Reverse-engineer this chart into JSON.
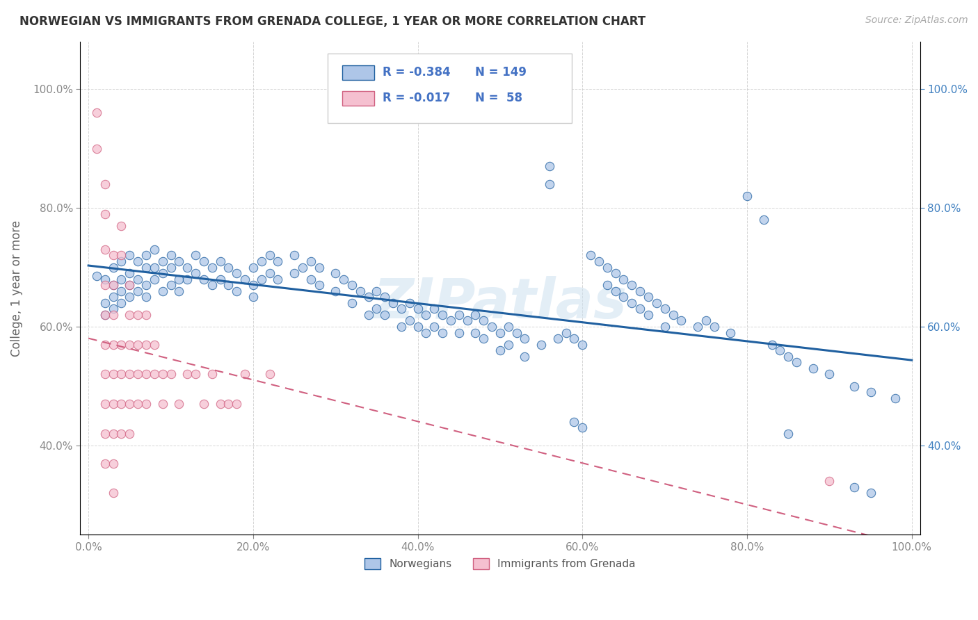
{
  "title": "NORWEGIAN VS IMMIGRANTS FROM GRENADA COLLEGE, 1 YEAR OR MORE CORRELATION CHART",
  "source": "Source: ZipAtlas.com",
  "ylabel": "College, 1 year or more",
  "x_tick_labels": [
    "0.0%",
    "20.0%",
    "40.0%",
    "60.0%",
    "80.0%",
    "100.0%"
  ],
  "x_tick_vals": [
    0.0,
    0.2,
    0.4,
    0.6,
    0.8,
    1.0
  ],
  "y_tick_labels_left": [
    "40.0%",
    "60.0%",
    "80.0%",
    "100.0%"
  ],
  "y_tick_labels_right": [
    "40.0%",
    "60.0%",
    "80.0%",
    "100.0%"
  ],
  "y_tick_vals": [
    0.4,
    0.6,
    0.8,
    1.0
  ],
  "xlim": [
    -0.01,
    1.01
  ],
  "ylim": [
    0.25,
    1.08
  ],
  "legend_r1_val": "-0.384",
  "legend_n1_val": "149",
  "legend_r2_val": "-0.017",
  "legend_n2_val": "58",
  "legend_label1": "Norwegians",
  "legend_label2": "Immigrants from Grenada",
  "blue_color": "#aec6e8",
  "blue_line_color": "#2060a0",
  "pink_color": "#f5c0d0",
  "pink_line_color": "#d06080",
  "watermark": "ZIPatlas",
  "background_color": "#ffffff",
  "grid_color": "#cccccc",
  "blue_scatter": [
    [
      0.01,
      0.685
    ],
    [
      0.02,
      0.68
    ],
    [
      0.02,
      0.64
    ],
    [
      0.02,
      0.62
    ],
    [
      0.03,
      0.7
    ],
    [
      0.03,
      0.67
    ],
    [
      0.03,
      0.65
    ],
    [
      0.03,
      0.63
    ],
    [
      0.04,
      0.71
    ],
    [
      0.04,
      0.68
    ],
    [
      0.04,
      0.66
    ],
    [
      0.04,
      0.64
    ],
    [
      0.05,
      0.72
    ],
    [
      0.05,
      0.69
    ],
    [
      0.05,
      0.67
    ],
    [
      0.05,
      0.65
    ],
    [
      0.06,
      0.71
    ],
    [
      0.06,
      0.68
    ],
    [
      0.06,
      0.66
    ],
    [
      0.07,
      0.72
    ],
    [
      0.07,
      0.7
    ],
    [
      0.07,
      0.67
    ],
    [
      0.07,
      0.65
    ],
    [
      0.08,
      0.73
    ],
    [
      0.08,
      0.7
    ],
    [
      0.08,
      0.68
    ],
    [
      0.09,
      0.71
    ],
    [
      0.09,
      0.69
    ],
    [
      0.09,
      0.66
    ],
    [
      0.1,
      0.72
    ],
    [
      0.1,
      0.7
    ],
    [
      0.1,
      0.67
    ],
    [
      0.11,
      0.71
    ],
    [
      0.11,
      0.68
    ],
    [
      0.11,
      0.66
    ],
    [
      0.12,
      0.7
    ],
    [
      0.12,
      0.68
    ],
    [
      0.13,
      0.72
    ],
    [
      0.13,
      0.69
    ],
    [
      0.14,
      0.71
    ],
    [
      0.14,
      0.68
    ],
    [
      0.15,
      0.7
    ],
    [
      0.15,
      0.67
    ],
    [
      0.16,
      0.71
    ],
    [
      0.16,
      0.68
    ],
    [
      0.17,
      0.7
    ],
    [
      0.17,
      0.67
    ],
    [
      0.18,
      0.69
    ],
    [
      0.18,
      0.66
    ],
    [
      0.19,
      0.68
    ],
    [
      0.2,
      0.7
    ],
    [
      0.2,
      0.67
    ],
    [
      0.2,
      0.65
    ],
    [
      0.21,
      0.71
    ],
    [
      0.21,
      0.68
    ],
    [
      0.22,
      0.72
    ],
    [
      0.22,
      0.69
    ],
    [
      0.23,
      0.71
    ],
    [
      0.23,
      0.68
    ],
    [
      0.25,
      0.72
    ],
    [
      0.25,
      0.69
    ],
    [
      0.26,
      0.7
    ],
    [
      0.27,
      0.71
    ],
    [
      0.27,
      0.68
    ],
    [
      0.28,
      0.7
    ],
    [
      0.28,
      0.67
    ],
    [
      0.3,
      0.69
    ],
    [
      0.3,
      0.66
    ],
    [
      0.31,
      0.68
    ],
    [
      0.32,
      0.67
    ],
    [
      0.32,
      0.64
    ],
    [
      0.33,
      0.66
    ],
    [
      0.34,
      0.65
    ],
    [
      0.34,
      0.62
    ],
    [
      0.35,
      0.66
    ],
    [
      0.35,
      0.63
    ],
    [
      0.36,
      0.65
    ],
    [
      0.36,
      0.62
    ],
    [
      0.37,
      0.64
    ],
    [
      0.38,
      0.63
    ],
    [
      0.38,
      0.6
    ],
    [
      0.39,
      0.64
    ],
    [
      0.39,
      0.61
    ],
    [
      0.4,
      0.63
    ],
    [
      0.4,
      0.6
    ],
    [
      0.41,
      0.62
    ],
    [
      0.41,
      0.59
    ],
    [
      0.42,
      0.63
    ],
    [
      0.42,
      0.6
    ],
    [
      0.43,
      0.62
    ],
    [
      0.43,
      0.59
    ],
    [
      0.44,
      0.61
    ],
    [
      0.45,
      0.62
    ],
    [
      0.45,
      0.59
    ],
    [
      0.46,
      0.61
    ],
    [
      0.47,
      0.62
    ],
    [
      0.47,
      0.59
    ],
    [
      0.48,
      0.61
    ],
    [
      0.48,
      0.58
    ],
    [
      0.49,
      0.6
    ],
    [
      0.5,
      0.59
    ],
    [
      0.5,
      0.56
    ],
    [
      0.51,
      0.6
    ],
    [
      0.51,
      0.57
    ],
    [
      0.52,
      0.59
    ],
    [
      0.53,
      0.58
    ],
    [
      0.53,
      0.55
    ],
    [
      0.55,
      0.57
    ],
    [
      0.56,
      0.87
    ],
    [
      0.56,
      0.84
    ],
    [
      0.57,
      0.58
    ],
    [
      0.58,
      0.59
    ],
    [
      0.59,
      0.58
    ],
    [
      0.6,
      0.57
    ],
    [
      0.61,
      0.72
    ],
    [
      0.62,
      0.71
    ],
    [
      0.63,
      0.7
    ],
    [
      0.63,
      0.67
    ],
    [
      0.64,
      0.69
    ],
    [
      0.64,
      0.66
    ],
    [
      0.65,
      0.68
    ],
    [
      0.65,
      0.65
    ],
    [
      0.66,
      0.67
    ],
    [
      0.66,
      0.64
    ],
    [
      0.67,
      0.66
    ],
    [
      0.67,
      0.63
    ],
    [
      0.68,
      0.65
    ],
    [
      0.68,
      0.62
    ],
    [
      0.69,
      0.64
    ],
    [
      0.7,
      0.63
    ],
    [
      0.7,
      0.6
    ],
    [
      0.71,
      0.62
    ],
    [
      0.72,
      0.61
    ],
    [
      0.74,
      0.6
    ],
    [
      0.75,
      0.61
    ],
    [
      0.76,
      0.6
    ],
    [
      0.78,
      0.59
    ],
    [
      0.8,
      0.82
    ],
    [
      0.82,
      0.78
    ],
    [
      0.83,
      0.57
    ],
    [
      0.84,
      0.56
    ],
    [
      0.85,
      0.55
    ],
    [
      0.86,
      0.54
    ],
    [
      0.88,
      0.53
    ],
    [
      0.9,
      0.52
    ],
    [
      0.93,
      0.5
    ],
    [
      0.95,
      0.49
    ],
    [
      0.98,
      0.48
    ],
    [
      0.59,
      0.44
    ],
    [
      0.6,
      0.43
    ],
    [
      0.85,
      0.42
    ],
    [
      0.93,
      0.33
    ],
    [
      0.95,
      0.32
    ]
  ],
  "pink_scatter": [
    [
      0.01,
      0.96
    ],
    [
      0.01,
      0.9
    ],
    [
      0.02,
      0.84
    ],
    [
      0.02,
      0.79
    ],
    [
      0.02,
      0.73
    ],
    [
      0.02,
      0.67
    ],
    [
      0.02,
      0.62
    ],
    [
      0.02,
      0.57
    ],
    [
      0.02,
      0.52
    ],
    [
      0.02,
      0.47
    ],
    [
      0.02,
      0.42
    ],
    [
      0.02,
      0.37
    ],
    [
      0.03,
      0.72
    ],
    [
      0.03,
      0.67
    ],
    [
      0.03,
      0.62
    ],
    [
      0.03,
      0.57
    ],
    [
      0.03,
      0.52
    ],
    [
      0.03,
      0.47
    ],
    [
      0.03,
      0.42
    ],
    [
      0.03,
      0.37
    ],
    [
      0.03,
      0.32
    ],
    [
      0.04,
      0.77
    ],
    [
      0.04,
      0.72
    ],
    [
      0.04,
      0.57
    ],
    [
      0.04,
      0.52
    ],
    [
      0.04,
      0.47
    ],
    [
      0.04,
      0.42
    ],
    [
      0.05,
      0.67
    ],
    [
      0.05,
      0.62
    ],
    [
      0.05,
      0.57
    ],
    [
      0.05,
      0.52
    ],
    [
      0.05,
      0.47
    ],
    [
      0.05,
      0.42
    ],
    [
      0.06,
      0.62
    ],
    [
      0.06,
      0.57
    ],
    [
      0.06,
      0.52
    ],
    [
      0.06,
      0.47
    ],
    [
      0.07,
      0.62
    ],
    [
      0.07,
      0.57
    ],
    [
      0.07,
      0.52
    ],
    [
      0.07,
      0.47
    ],
    [
      0.08,
      0.57
    ],
    [
      0.08,
      0.52
    ],
    [
      0.09,
      0.52
    ],
    [
      0.09,
      0.47
    ],
    [
      0.1,
      0.52
    ],
    [
      0.11,
      0.47
    ],
    [
      0.12,
      0.52
    ],
    [
      0.13,
      0.52
    ],
    [
      0.14,
      0.47
    ],
    [
      0.15,
      0.52
    ],
    [
      0.16,
      0.47
    ],
    [
      0.17,
      0.47
    ],
    [
      0.18,
      0.47
    ],
    [
      0.19,
      0.52
    ],
    [
      0.22,
      0.52
    ],
    [
      0.9,
      0.34
    ]
  ]
}
